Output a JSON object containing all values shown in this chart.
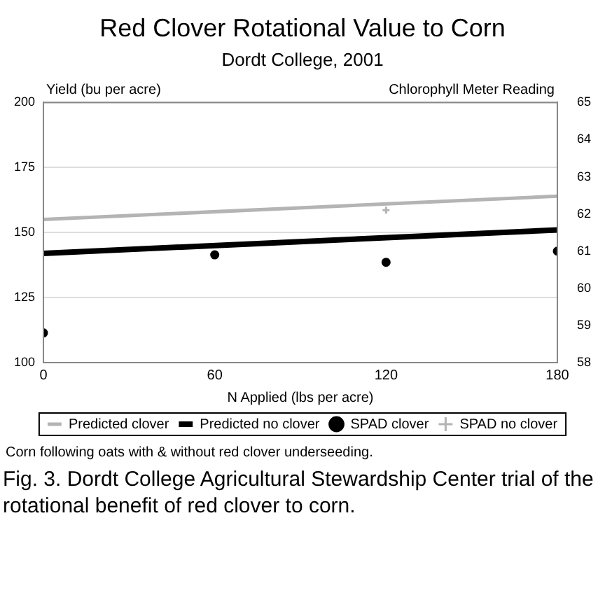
{
  "chart_data": {
    "type": "line",
    "title": "Red Clover Rotational Value to Corn",
    "subtitle": "Dordt College, 2001",
    "xlabel": "N Applied (lbs per acre)",
    "ylabel": "Yield (bu per acre)",
    "y2label": "Chlorophyll Meter Reading",
    "xlim": [
      0,
      180
    ],
    "xticks": [
      0,
      60,
      120,
      180
    ],
    "ylim": [
      100,
      200
    ],
    "yticks": [
      100,
      125,
      150,
      175,
      200
    ],
    "y2lim": [
      58,
      65
    ],
    "y2ticks": [
      58,
      59,
      60,
      61,
      62,
      63,
      64,
      65
    ],
    "grid": "y",
    "legend": "bottom",
    "series": [
      {
        "name": "Predicted clover",
        "type": "line",
        "color": "#b4b4b4",
        "x": [
          0,
          180
        ],
        "values": [
          155,
          164
        ],
        "marker": "none"
      },
      {
        "name": "Predicted no clover",
        "type": "line",
        "color": "#000000",
        "x": [
          0,
          180
        ],
        "values": [
          142,
          151
        ],
        "marker": "none"
      },
      {
        "name": "SPAD clover",
        "type": "scatter",
        "axis": "y2",
        "color": "#000000",
        "x": [
          0,
          60,
          120,
          180
        ],
        "values": [
          58.8,
          60.9,
          60.7,
          61.0
        ],
        "marker": "circle"
      },
      {
        "name": "SPAD no clover",
        "type": "scatter",
        "axis": "y2",
        "color": "#b4b4b4",
        "x": [
          120
        ],
        "values": [
          62.1
        ],
        "marker": "cross"
      }
    ],
    "annotations": [
      "Corn following oats with & without red clover underseeding.",
      "Fig. 3. Dordt College Agricultural Stewardship Center trial of the rotational benefit of red clover to corn."
    ]
  }
}
